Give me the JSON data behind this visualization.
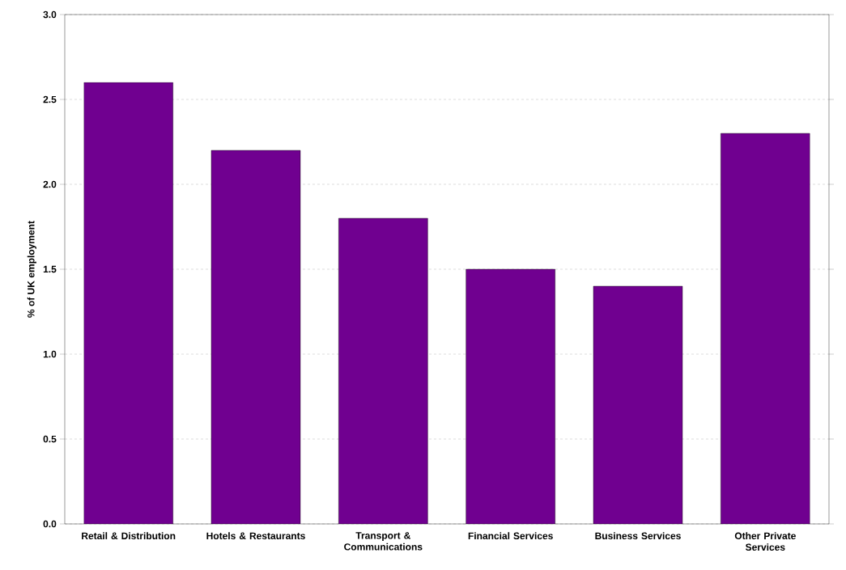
{
  "chart_data": {
    "type": "bar",
    "ylabel": "% of UK employment",
    "categories": [
      "Retail & Distribution",
      "Hotels & Restaurants",
      "Transport & Communications",
      "Financial Services",
      "Business Services",
      "Other Private Services"
    ],
    "values": [
      2.6,
      2.2,
      1.8,
      1.5,
      1.4,
      2.3
    ],
    "color": "#700090",
    "ylim": [
      0,
      3
    ],
    "yticks": [
      {
        "value": 0,
        "label": "0.0"
      },
      {
        "value": 0.5,
        "label": "0.5"
      },
      {
        "value": 1,
        "label": "1.0"
      },
      {
        "value": 1.5,
        "label": "1.5"
      },
      {
        "value": 2,
        "label": "2.0"
      },
      {
        "value": 2.5,
        "label": "2.5"
      },
      {
        "value": 3,
        "label": "3.0"
      }
    ],
    "grid": "y"
  }
}
